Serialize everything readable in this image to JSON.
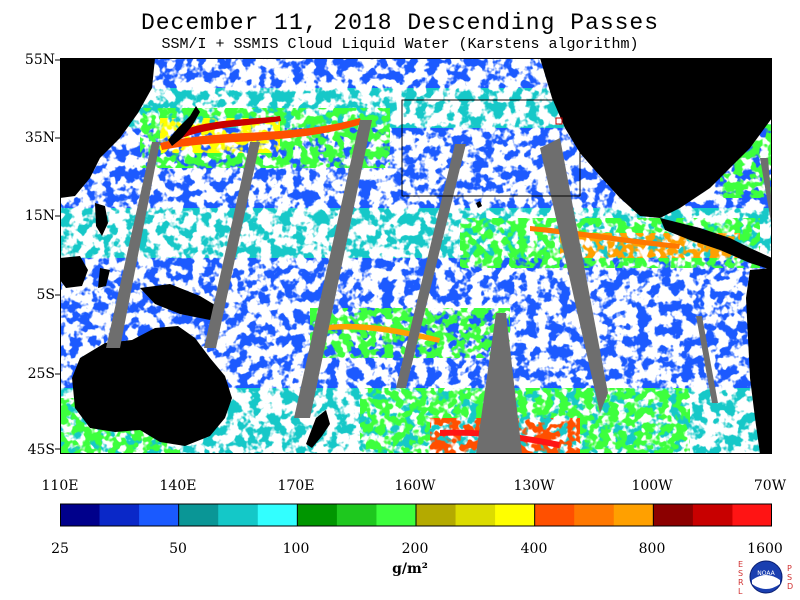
{
  "header": {
    "title": "December 11, 2018  Descending Passes",
    "subtitle": "SSM/I + SSMIS Cloud Liquid Water (Karstens algorithm)"
  },
  "map": {
    "lat_labels": [
      "55N",
      "35N",
      "15N",
      "5S",
      "25S",
      "45S"
    ],
    "lon_labels": [
      "110E",
      "140E",
      "170E",
      "160W",
      "130W",
      "100W",
      "70W"
    ],
    "ocean_color": "#ffffff",
    "land_color": "#000000",
    "no_data_color": "#6e6e6e"
  },
  "colorbar": {
    "colors": [
      "#00008b",
      "#0a28c8",
      "#1a5aff",
      "#0a9696",
      "#14c8c8",
      "#32ffff",
      "#009600",
      "#1ec81e",
      "#3cff3c",
      "#b4aa00",
      "#dcdc00",
      "#ffff00",
      "#ff5000",
      "#ff7800",
      "#ffa000",
      "#8c0000",
      "#c80000",
      "#ff1414"
    ],
    "tick_labels": [
      "25",
      "50",
      "100",
      "200",
      "400",
      "800",
      "1600"
    ],
    "units": "g/m²"
  },
  "logo": {
    "left_letters": [
      "E",
      "S",
      "R",
      "L"
    ],
    "right_letters": [
      "P",
      "S",
      "D"
    ],
    "badge_text": "NOAA"
  }
}
